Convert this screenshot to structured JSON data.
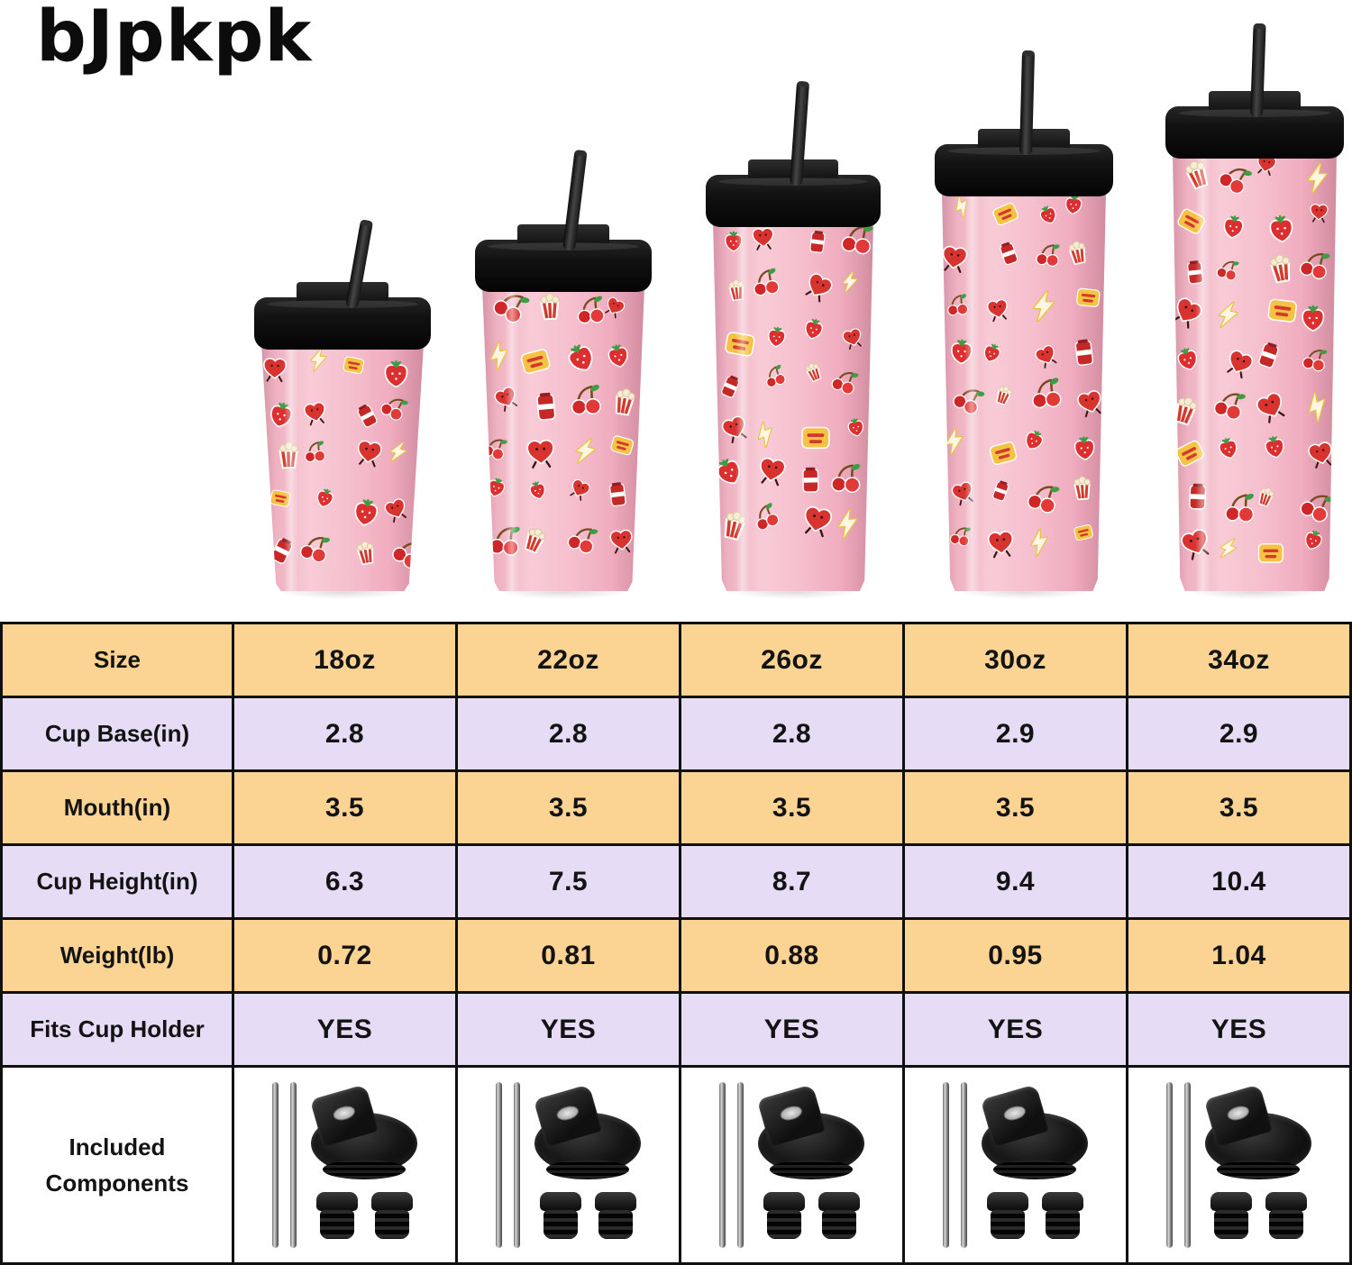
{
  "brand": "bJpkpk",
  "products": [
    {
      "size": "18oz"
    },
    {
      "size": "22oz"
    },
    {
      "size": "26oz"
    },
    {
      "size": "30oz"
    },
    {
      "size": "34oz"
    }
  ],
  "pattern_stickers": [
    "heart-character",
    "cherry",
    "strawberry",
    "lightning-bolt",
    "popcorn",
    "its-your-day-badge",
    "soda-can"
  ],
  "table": {
    "rows": [
      {
        "label": "Size",
        "values": [
          "18oz",
          "22oz",
          "26oz",
          "30oz",
          "34oz"
        ]
      },
      {
        "label": "Cup Base(in)",
        "values": [
          "2.8",
          "2.8",
          "2.8",
          "2.9",
          "2.9"
        ]
      },
      {
        "label": "Mouth(in)",
        "values": [
          "3.5",
          "3.5",
          "3.5",
          "3.5",
          "3.5"
        ]
      },
      {
        "label": "Cup Height(in)",
        "values": [
          "6.3",
          "7.5",
          "8.7",
          "9.4",
          "10.4"
        ]
      },
      {
        "label": "Weight(lb)",
        "values": [
          "0.72",
          "0.81",
          "0.88",
          "0.95",
          "1.04"
        ]
      },
      {
        "label": "Fits Cup Holder",
        "values": [
          "YES",
          "YES",
          "YES",
          "YES",
          "YES"
        ]
      },
      {
        "label": "Included Components",
        "type": "components"
      }
    ]
  },
  "included_components": [
    "two-metal-straws",
    "flip-lid",
    "two-straw-stoppers"
  ],
  "colors": {
    "table_yellow": "#fbd493",
    "table_lavender": "#e6dcf5",
    "table_border": "#101010",
    "cup_pink": "#f6bfce",
    "lid_black": "#161616",
    "sticker_red": "#d8332f",
    "sticker_green": "#3e9d44",
    "bolt_yellow": "#e9c23c"
  }
}
